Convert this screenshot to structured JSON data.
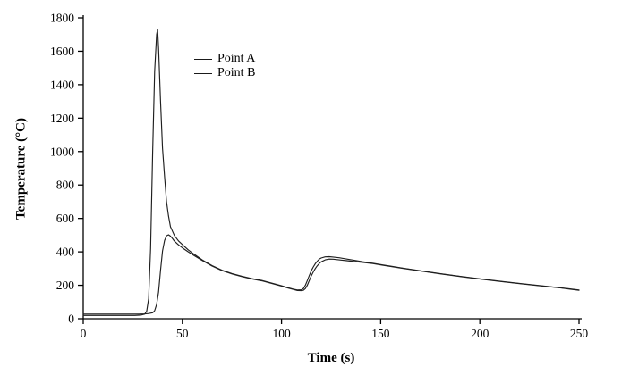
{
  "chart_data": {
    "type": "line",
    "title": "",
    "xlabel": "Time (s)",
    "ylabel": "Temperature (°C)",
    "xlim": [
      0,
      250
    ],
    "ylim": [
      0,
      1800
    ],
    "xticks": [
      0,
      50,
      100,
      150,
      200,
      250
    ],
    "yticks": [
      0,
      200,
      400,
      600,
      800,
      1000,
      1200,
      1400,
      1600,
      1800
    ],
    "grid": false,
    "legend_position": "inside-upper-left",
    "line_color": "#1f1f1f",
    "axis_color": "#000000",
    "series": [
      {
        "name": "Point A",
        "points": [
          [
            0,
            20
          ],
          [
            10,
            20
          ],
          [
            20,
            20
          ],
          [
            26,
            20
          ],
          [
            29,
            22
          ],
          [
            31,
            28
          ],
          [
            32,
            45
          ],
          [
            33,
            120
          ],
          [
            34,
            420
          ],
          [
            35,
            1000
          ],
          [
            36,
            1480
          ],
          [
            37,
            1700
          ],
          [
            37.5,
            1732
          ],
          [
            38,
            1620
          ],
          [
            39,
            1300
          ],
          [
            40,
            1020
          ],
          [
            41,
            850
          ],
          [
            42,
            700
          ],
          [
            43,
            615
          ],
          [
            44,
            550
          ],
          [
            46,
            498
          ],
          [
            48,
            466
          ],
          [
            50,
            444
          ],
          [
            53,
            412
          ],
          [
            56,
            385
          ],
          [
            60,
            352
          ],
          [
            65,
            318
          ],
          [
            70,
            290
          ],
          [
            75,
            270
          ],
          [
            80,
            254
          ],
          [
            85,
            240
          ],
          [
            90,
            229
          ],
          [
            95,
            213
          ],
          [
            100,
            197
          ],
          [
            103,
            187
          ],
          [
            106,
            177
          ],
          [
            108,
            172
          ],
          [
            110,
            173
          ],
          [
            111,
            180
          ],
          [
            112,
            200
          ],
          [
            113,
            228
          ],
          [
            114,
            258
          ],
          [
            115,
            287
          ],
          [
            116,
            310
          ],
          [
            117,
            329
          ],
          [
            118,
            344
          ],
          [
            119,
            356
          ],
          [
            120,
            363
          ],
          [
            122,
            370
          ],
          [
            124,
            371
          ],
          [
            126,
            369
          ],
          [
            129,
            365
          ],
          [
            133,
            357
          ],
          [
            137,
            349
          ],
          [
            141,
            341
          ],
          [
            146,
            332
          ],
          [
            151,
            322
          ],
          [
            156,
            313
          ],
          [
            161,
            303
          ],
          [
            171,
            285
          ],
          [
            181,
            268
          ],
          [
            191,
            252
          ],
          [
            201,
            237
          ],
          [
            211,
            223
          ],
          [
            221,
            210
          ],
          [
            231,
            197
          ],
          [
            241,
            185
          ],
          [
            250,
            172
          ]
        ]
      },
      {
        "name": "Point B",
        "points": [
          [
            0,
            28
          ],
          [
            10,
            28
          ],
          [
            20,
            28
          ],
          [
            28,
            28
          ],
          [
            31,
            29
          ],
          [
            33,
            31
          ],
          [
            35,
            36
          ],
          [
            36,
            48
          ],
          [
            37,
            85
          ],
          [
            38,
            160
          ],
          [
            39,
            290
          ],
          [
            40,
            405
          ],
          [
            41,
            468
          ],
          [
            42,
            496
          ],
          [
            43,
            502
          ],
          [
            44,
            494
          ],
          [
            45,
            480
          ],
          [
            46,
            464
          ],
          [
            48,
            442
          ],
          [
            50,
            424
          ],
          [
            53,
            400
          ],
          [
            56,
            377
          ],
          [
            60,
            348
          ],
          [
            65,
            315
          ],
          [
            70,
            288
          ],
          [
            75,
            268
          ],
          [
            80,
            252
          ],
          [
            85,
            238
          ],
          [
            90,
            227
          ],
          [
            95,
            211
          ],
          [
            100,
            195
          ],
          [
            103,
            185
          ],
          [
            106,
            175
          ],
          [
            108,
            169
          ],
          [
            110,
            168
          ],
          [
            111,
            170
          ],
          [
            112,
            180
          ],
          [
            113,
            200
          ],
          [
            114,
            228
          ],
          [
            115,
            256
          ],
          [
            116,
            280
          ],
          [
            117,
            300
          ],
          [
            118,
            317
          ],
          [
            119,
            330
          ],
          [
            120,
            340
          ],
          [
            122,
            352
          ],
          [
            124,
            357
          ],
          [
            126,
            356
          ],
          [
            129,
            352
          ],
          [
            133,
            347
          ],
          [
            137,
            342
          ],
          [
            141,
            337
          ],
          [
            146,
            330
          ],
          [
            151,
            320
          ],
          [
            156,
            311
          ],
          [
            161,
            302
          ],
          [
            171,
            284
          ],
          [
            181,
            267
          ],
          [
            191,
            251
          ],
          [
            201,
            236
          ],
          [
            211,
            222
          ],
          [
            221,
            209
          ],
          [
            231,
            196
          ],
          [
            241,
            184
          ],
          [
            250,
            170
          ]
        ]
      }
    ]
  }
}
